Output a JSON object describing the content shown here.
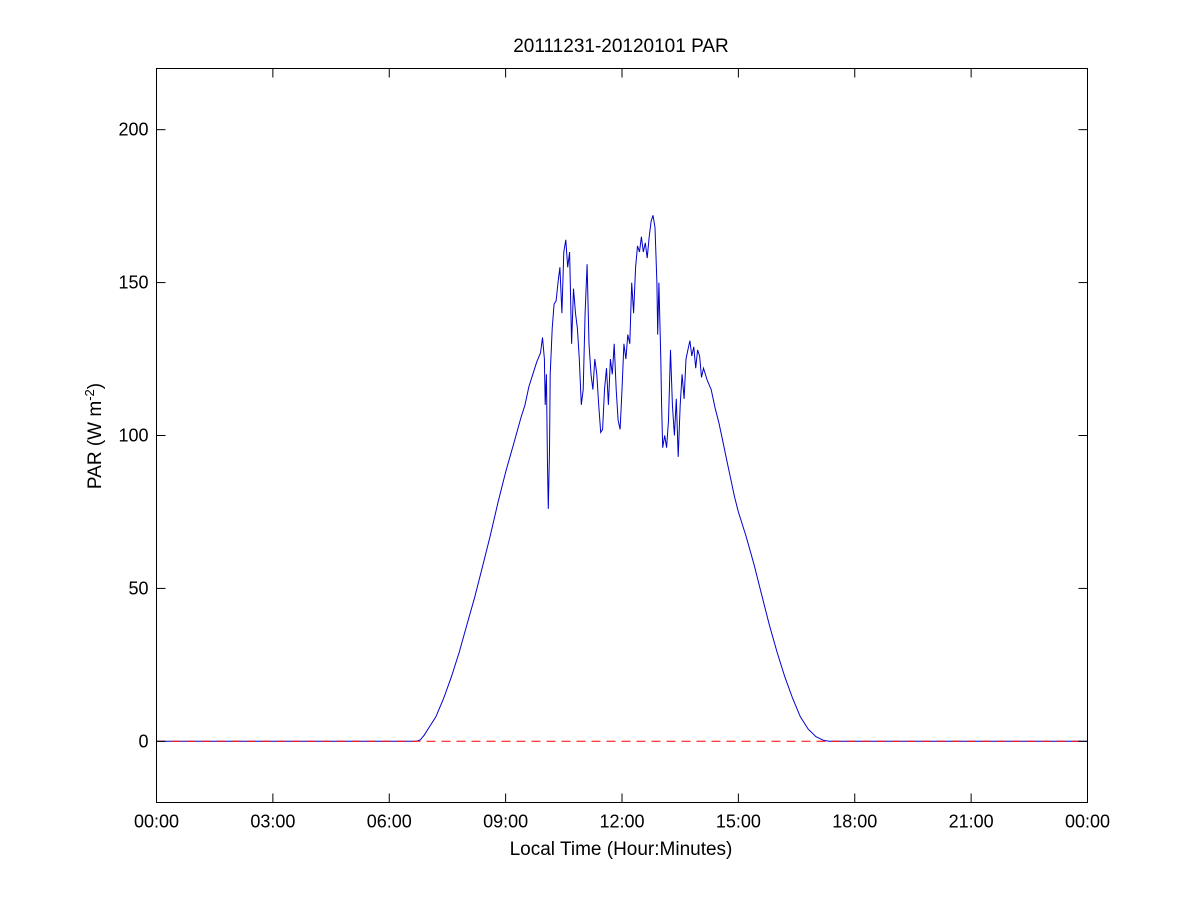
{
  "chart_data": {
    "type": "line",
    "title": "20111231-20120101 PAR",
    "xlabel": "Local Time (Hour:Minutes)",
    "ylabel": "PAR (W m-2)",
    "ylabel_parts": {
      "main": "PAR (W m",
      "sup": "-2",
      "close": ")"
    },
    "xlim": [
      0,
      24
    ],
    "ylim": [
      -20,
      220
    ],
    "x_unit": "hours",
    "xticks": [
      0,
      3,
      6,
      9,
      12,
      15,
      18,
      21,
      24
    ],
    "xtick_labels": [
      "00:00",
      "03:00",
      "06:00",
      "09:00",
      "12:00",
      "15:00",
      "18:00",
      "21:00",
      "00:00"
    ],
    "yticks": [
      0,
      50,
      100,
      150,
      200
    ],
    "ytick_labels": [
      "0",
      "50",
      "100",
      "150",
      "200"
    ],
    "grid": false,
    "series": [
      {
        "color": "#0000cc",
        "style": "solid",
        "points": [
          [
            0,
            0
          ],
          [
            6.0,
            0
          ],
          [
            6.7,
            0
          ],
          [
            6.8,
            0.5
          ],
          [
            6.9,
            2
          ],
          [
            7.0,
            4
          ],
          [
            7.2,
            8
          ],
          [
            7.4,
            14
          ],
          [
            7.6,
            21
          ],
          [
            7.8,
            29
          ],
          [
            8.0,
            38
          ],
          [
            8.2,
            47
          ],
          [
            8.4,
            57
          ],
          [
            8.6,
            67
          ],
          [
            8.8,
            78
          ],
          [
            9.0,
            88
          ],
          [
            9.2,
            97
          ],
          [
            9.4,
            106
          ],
          [
            9.5,
            110
          ],
          [
            9.6,
            116
          ],
          [
            9.7,
            120
          ],
          [
            9.8,
            124
          ],
          [
            9.9,
            127
          ],
          [
            9.95,
            132
          ],
          [
            10.0,
            125
          ],
          [
            10.02,
            110
          ],
          [
            10.05,
            120
          ],
          [
            10.08,
            90
          ],
          [
            10.1,
            76
          ],
          [
            10.13,
            95
          ],
          [
            10.15,
            120
          ],
          [
            10.2,
            135
          ],
          [
            10.25,
            143
          ],
          [
            10.3,
            144
          ],
          [
            10.35,
            150
          ],
          [
            10.4,
            155
          ],
          [
            10.45,
            140
          ],
          [
            10.5,
            160
          ],
          [
            10.55,
            164
          ],
          [
            10.6,
            155
          ],
          [
            10.65,
            160
          ],
          [
            10.7,
            130
          ],
          [
            10.75,
            148
          ],
          [
            10.8,
            140
          ],
          [
            10.85,
            135
          ],
          [
            10.9,
            125
          ],
          [
            10.95,
            110
          ],
          [
            11.0,
            115
          ],
          [
            11.05,
            140
          ],
          [
            11.1,
            156
          ],
          [
            11.15,
            130
          ],
          [
            11.2,
            120
          ],
          [
            11.25,
            115
          ],
          [
            11.3,
            125
          ],
          [
            11.35,
            120
          ],
          [
            11.4,
            110
          ],
          [
            11.45,
            101
          ],
          [
            11.5,
            102
          ],
          [
            11.55,
            115
          ],
          [
            11.6,
            122
          ],
          [
            11.65,
            110
          ],
          [
            11.7,
            125
          ],
          [
            11.75,
            120
          ],
          [
            11.8,
            130
          ],
          [
            11.85,
            115
          ],
          [
            11.9,
            105
          ],
          [
            11.95,
            102
          ],
          [
            12.0,
            115
          ],
          [
            12.05,
            130
          ],
          [
            12.1,
            125
          ],
          [
            12.15,
            133
          ],
          [
            12.2,
            130
          ],
          [
            12.25,
            150
          ],
          [
            12.3,
            140
          ],
          [
            12.35,
            155
          ],
          [
            12.4,
            162
          ],
          [
            12.45,
            160
          ],
          [
            12.5,
            165
          ],
          [
            12.55,
            160
          ],
          [
            12.6,
            163
          ],
          [
            12.65,
            158
          ],
          [
            12.7,
            165
          ],
          [
            12.75,
            170
          ],
          [
            12.8,
            172
          ],
          [
            12.85,
            168
          ],
          [
            12.9,
            150
          ],
          [
            12.92,
            133
          ],
          [
            12.95,
            150
          ],
          [
            13.0,
            125
          ],
          [
            13.02,
            110
          ],
          [
            13.05,
            96
          ],
          [
            13.1,
            100
          ],
          [
            13.15,
            96
          ],
          [
            13.2,
            105
          ],
          [
            13.25,
            128
          ],
          [
            13.3,
            110
          ],
          [
            13.35,
            100
          ],
          [
            13.4,
            112
          ],
          [
            13.45,
            93
          ],
          [
            13.5,
            110
          ],
          [
            13.55,
            120
          ],
          [
            13.6,
            112
          ],
          [
            13.65,
            125
          ],
          [
            13.7,
            128
          ],
          [
            13.75,
            131
          ],
          [
            13.8,
            126
          ],
          [
            13.85,
            129
          ],
          [
            13.9,
            122
          ],
          [
            13.95,
            128
          ],
          [
            14.0,
            126
          ],
          [
            14.05,
            119
          ],
          [
            14.1,
            122
          ],
          [
            14.2,
            118
          ],
          [
            14.3,
            115
          ],
          [
            14.4,
            109
          ],
          [
            14.5,
            104
          ],
          [
            14.6,
            98
          ],
          [
            14.7,
            92
          ],
          [
            14.8,
            86
          ],
          [
            14.9,
            80
          ],
          [
            15.0,
            75
          ],
          [
            15.2,
            67
          ],
          [
            15.4,
            58
          ],
          [
            15.6,
            48
          ],
          [
            15.8,
            38
          ],
          [
            16.0,
            29
          ],
          [
            16.2,
            21
          ],
          [
            16.4,
            14
          ],
          [
            16.6,
            8
          ],
          [
            16.8,
            4
          ],
          [
            17.0,
            1.5
          ],
          [
            17.2,
            0.3
          ],
          [
            17.35,
            0
          ],
          [
            24,
            0
          ]
        ]
      },
      {
        "color": "#ff0000",
        "style": "dashed",
        "points": [
          [
            0,
            0
          ],
          [
            24,
            0
          ]
        ]
      }
    ]
  }
}
